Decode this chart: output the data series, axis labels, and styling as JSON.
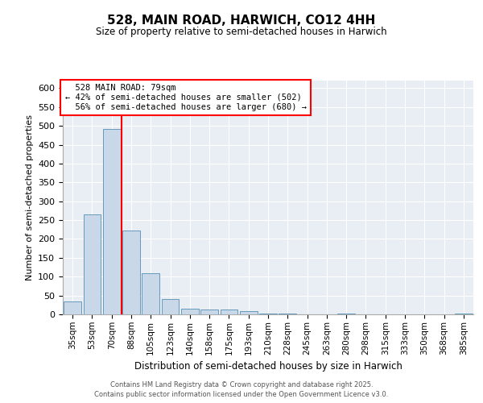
{
  "title": "528, MAIN ROAD, HARWICH, CO12 4HH",
  "subtitle": "Size of property relative to semi-detached houses in Harwich",
  "xlabel": "Distribution of semi-detached houses by size in Harwich",
  "ylabel": "Number of semi-detached properties",
  "categories": [
    "35sqm",
    "53sqm",
    "70sqm",
    "88sqm",
    "105sqm",
    "123sqm",
    "140sqm",
    "158sqm",
    "175sqm",
    "193sqm",
    "210sqm",
    "228sqm",
    "245sqm",
    "263sqm",
    "280sqm",
    "298sqm",
    "315sqm",
    "333sqm",
    "350sqm",
    "368sqm",
    "385sqm"
  ],
  "values": [
    35,
    265,
    492,
    222,
    108,
    40,
    15,
    12,
    13,
    8,
    2,
    3,
    1,
    0,
    3,
    1,
    0,
    0,
    0,
    0,
    3
  ],
  "bar_color": "#c8d8e8",
  "bar_edge_color": "#6699bb",
  "property_line_x": 2.5,
  "property_sqm": 79,
  "pct_smaller": 42,
  "n_smaller": 502,
  "pct_larger": 56,
  "n_larger": 680,
  "annotation_box_color": "#cc0000",
  "ylim": [
    0,
    620
  ],
  "yticks": [
    0,
    50,
    100,
    150,
    200,
    250,
    300,
    350,
    400,
    450,
    500,
    550,
    600
  ],
  "background_color": "#e8eef4",
  "footer_line1": "Contains HM Land Registry data © Crown copyright and database right 2025.",
  "footer_line2": "Contains public sector information licensed under the Open Government Licence v3.0."
}
